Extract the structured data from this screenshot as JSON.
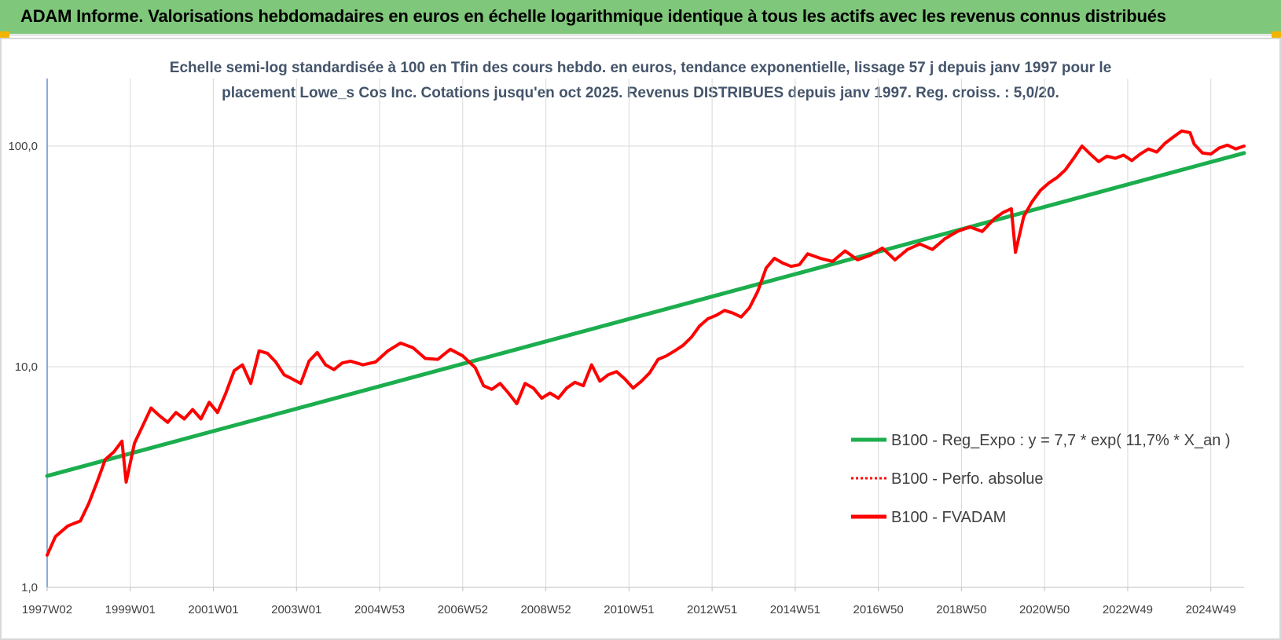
{
  "header": {
    "title": "ADAM Informe. Valorisations hebdomadaires en euros en échelle logarithmique identique à tous les actifs avec les revenus connus distribués",
    "background_color": "#7fc77a",
    "corner_color": "#f2b400"
  },
  "chart_data": {
    "type": "line",
    "title_lines": [
      "Echelle semi-log standardisée à 100 en Tfin des cours hebdo. en euros, tendance exponentielle, lissage 57 j depuis janv 1997 pour le",
      "placement Lowe_s Cos Inc. Cotations jusqu'en oct 2025. Revenus DISTRIBUES depuis janv 1997. Reg. croiss. : 5,0/20."
    ],
    "y_scale": "log",
    "ylim": [
      1,
      200
    ],
    "y_ticks": [
      {
        "value": 1,
        "label": "1,0"
      },
      {
        "value": 10,
        "label": "10,0"
      },
      {
        "value": 100,
        "label": "100,0"
      }
    ],
    "xlim": [
      1997.0,
      2025.8
    ],
    "x_ticks": [
      {
        "value": 1997.0,
        "label": "1997W02"
      },
      {
        "value": 1999.0,
        "label": "1999W01"
      },
      {
        "value": 2001.0,
        "label": "2001W01"
      },
      {
        "value": 2003.0,
        "label": "2003W01"
      },
      {
        "value": 2005.0,
        "label": "2004W53"
      },
      {
        "value": 2007.0,
        "label": "2006W52"
      },
      {
        "value": 2009.0,
        "label": "2008W52"
      },
      {
        "value": 2011.0,
        "label": "2010W51"
      },
      {
        "value": 2013.0,
        "label": "2012W51"
      },
      {
        "value": 2015.0,
        "label": "2014W51"
      },
      {
        "value": 2017.0,
        "label": "2016W50"
      },
      {
        "value": 2019.0,
        "label": "2018W50"
      },
      {
        "value": 2021.0,
        "label": "2020W50"
      },
      {
        "value": 2023.0,
        "label": "2022W49"
      },
      {
        "value": 2025.0,
        "label": "2024W49"
      }
    ],
    "grid": "vertical-and-horizontal",
    "legend_position": "right",
    "series": [
      {
        "name": "B100 - Reg_Expo : y = 7,7 * exp( 11,7% * X_an )",
        "color": "#1cae4e",
        "style": "solid",
        "x": [
          1997.0,
          2025.8
        ],
        "y": [
          3.2,
          93
        ]
      },
      {
        "name": "B100 - Perfo. absolue",
        "color": "#ff0000",
        "style": "dotted",
        "x": [],
        "y": []
      },
      {
        "name": "B100 - FVADAM",
        "color": "#ff0000",
        "style": "solid",
        "x": [
          1997.0,
          1997.2,
          1997.5,
          1997.8,
          1998.0,
          1998.2,
          1998.4,
          1998.6,
          1998.8,
          1998.9,
          1999.1,
          1999.3,
          1999.5,
          1999.7,
          1999.9,
          2000.1,
          2000.3,
          2000.5,
          2000.7,
          2000.9,
          2001.1,
          2001.3,
          2001.5,
          2001.7,
          2001.9,
          2002.1,
          2002.3,
          2002.5,
          2002.7,
          2002.9,
          2003.1,
          2003.3,
          2003.5,
          2003.7,
          2003.9,
          2004.1,
          2004.3,
          2004.6,
          2004.9,
          2005.2,
          2005.5,
          2005.8,
          2006.1,
          2006.4,
          2006.7,
          2007.0,
          2007.3,
          2007.5,
          2007.7,
          2007.9,
          2008.1,
          2008.3,
          2008.5,
          2008.7,
          2008.9,
          2009.1,
          2009.3,
          2009.5,
          2009.7,
          2009.9,
          2010.1,
          2010.3,
          2010.5,
          2010.7,
          2010.9,
          2011.1,
          2011.3,
          2011.5,
          2011.7,
          2011.9,
          2012.1,
          2012.3,
          2012.5,
          2012.7,
          2012.9,
          2013.1,
          2013.3,
          2013.5,
          2013.7,
          2013.9,
          2014.1,
          2014.3,
          2014.5,
          2014.7,
          2014.9,
          2015.1,
          2015.3,
          2015.6,
          2015.9,
          2016.2,
          2016.5,
          2016.8,
          2017.1,
          2017.4,
          2017.7,
          2018.0,
          2018.3,
          2018.6,
          2018.9,
          2019.2,
          2019.5,
          2019.8,
          2020.0,
          2020.2,
          2020.3,
          2020.5,
          2020.7,
          2020.9,
          2021.1,
          2021.3,
          2021.5,
          2021.7,
          2021.9,
          2022.1,
          2022.3,
          2022.5,
          2022.7,
          2022.9,
          2023.1,
          2023.3,
          2023.5,
          2023.7,
          2023.9,
          2024.1,
          2024.3,
          2024.5,
          2024.6,
          2024.8,
          2025.0,
          2025.2,
          2025.4,
          2025.6,
          2025.8
        ],
        "y": [
          1.4,
          1.7,
          1.9,
          2.0,
          2.4,
          3.0,
          3.8,
          4.1,
          4.6,
          3.0,
          4.5,
          5.4,
          6.5,
          6.0,
          5.6,
          6.2,
          5.8,
          6.4,
          5.8,
          6.9,
          6.2,
          7.6,
          9.6,
          10.2,
          8.4,
          11.8,
          11.5,
          10.5,
          9.2,
          8.8,
          8.4,
          10.6,
          11.6,
          10.2,
          9.7,
          10.4,
          10.6,
          10.2,
          10.5,
          11.8,
          12.8,
          12.2,
          10.9,
          10.8,
          12.0,
          11.2,
          9.9,
          8.2,
          7.9,
          8.4,
          7.6,
          6.8,
          8.4,
          8.0,
          7.2,
          7.6,
          7.2,
          8.0,
          8.5,
          8.2,
          10.2,
          8.6,
          9.2,
          9.5,
          8.8,
          8.0,
          8.6,
          9.4,
          10.8,
          11.2,
          11.8,
          12.5,
          13.6,
          15.3,
          16.5,
          17.1,
          18.0,
          17.5,
          16.8,
          18.5,
          22.0,
          28.0,
          31.0,
          29.5,
          28.5,
          29.0,
          32.5,
          31.0,
          30.0,
          33.5,
          30.5,
          32.0,
          34.5,
          30.5,
          34.0,
          36.0,
          34.0,
          38.0,
          41.0,
          43.0,
          41.0,
          47.0,
          50.0,
          52.0,
          33.0,
          48.0,
          56.0,
          63.0,
          68.0,
          72.0,
          78.0,
          88.0,
          100.0,
          92.0,
          85.0,
          90.0,
          88.0,
          91.0,
          86.0,
          92.0,
          97.0,
          94.0,
          103.0,
          110.0,
          117.0,
          115.0,
          102.0,
          93.0,
          92.0,
          98.0,
          101.0,
          97.0,
          100.0
        ]
      }
    ]
  }
}
